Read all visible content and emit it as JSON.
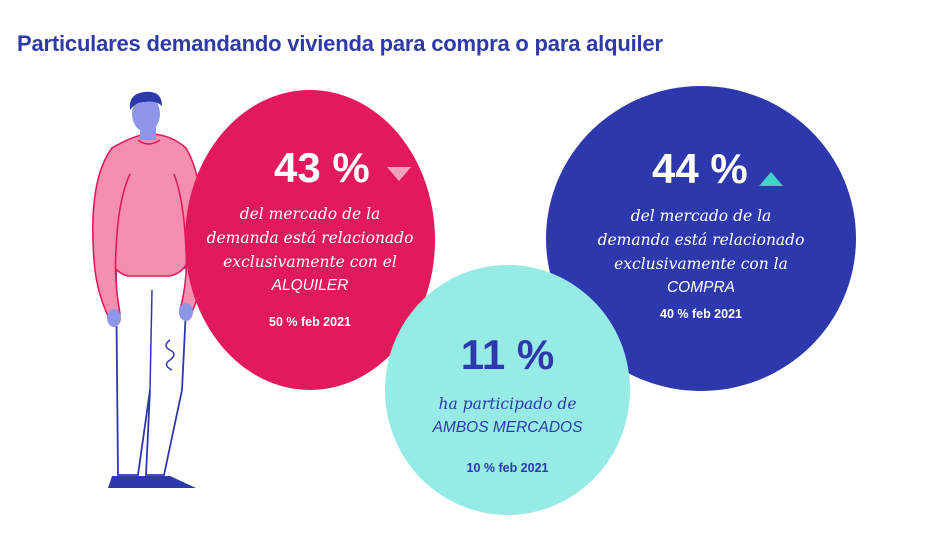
{
  "title": "Particulares demandando vivienda para compra o para alquiler",
  "colors": {
    "title": "#2f3aa8",
    "alquiler_circle": "#e3195e",
    "compra_circle": "#2e38ad",
    "ambos_circle": "#96ece4",
    "trend_down": "#f3a4bd",
    "trend_up": "#3fd3c9"
  },
  "alquiler": {
    "percent": "43 %",
    "trend_icon": "triangle-down-icon",
    "line1": "del mercado de la",
    "line2": "demanda está relacionado",
    "line3": "exclusivamente con el",
    "market": "ALQUILER",
    "previous": "50 % feb 2021"
  },
  "compra": {
    "percent": "44 %",
    "trend_icon": "triangle-up-icon",
    "line1": "del mercado de la",
    "line2": "demanda está relacionado",
    "line3": "exclusivamente con la",
    "market": "COMPRA",
    "previous": "40 % feb 2021"
  },
  "ambos": {
    "percent": "11 %",
    "line1": "ha participado de",
    "market": "AMBOS MERCADOS",
    "previous": "10 % feb 2021"
  },
  "illustration": "person-illustration"
}
